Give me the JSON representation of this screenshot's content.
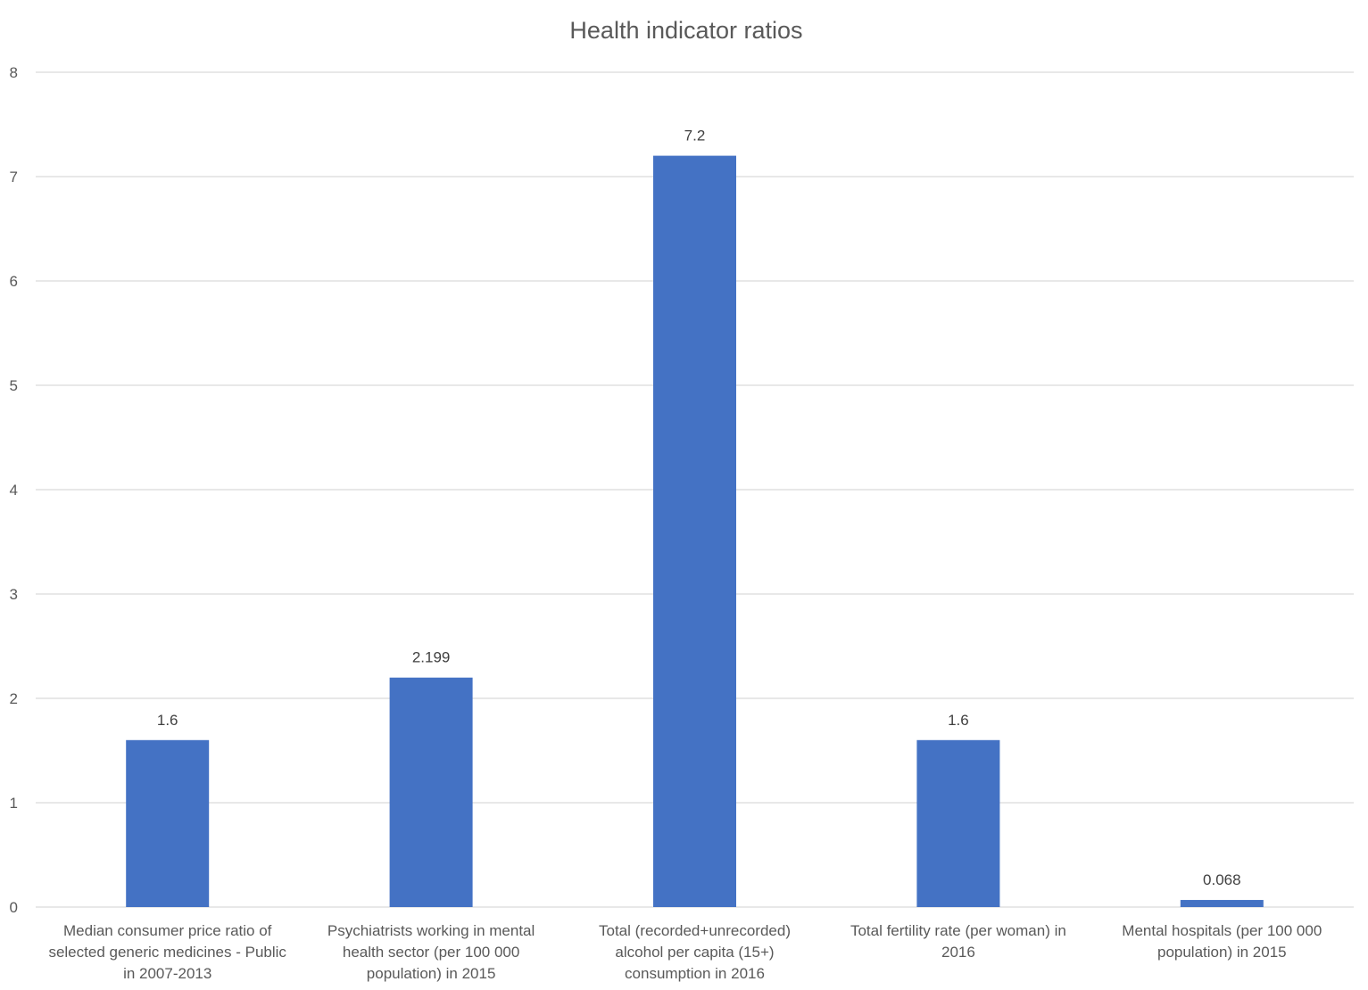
{
  "chart_data": {
    "type": "bar",
    "title": "Health indicator ratios",
    "xlabel": "",
    "ylabel": "",
    "ylim": [
      0,
      8
    ],
    "yticks": [
      0,
      1,
      2,
      3,
      4,
      5,
      6,
      7,
      8
    ],
    "grid": true,
    "legend": "none",
    "colors": {
      "bar": "#4472C4"
    },
    "categories": [
      [
        "Median consumer price ratio of",
        "selected generic medicines - Public",
        "in 2007-2013"
      ],
      [
        "Psychiatrists working in mental",
        "health sector (per 100 000",
        "population) in 2015"
      ],
      [
        "Total (recorded+unrecorded)",
        "alcohol per capita (15+)",
        "consumption in 2016"
      ],
      [
        "Total fertility rate (per woman) in",
        "2016"
      ],
      [
        "Mental hospitals (per 100 000",
        "population) in 2015"
      ]
    ],
    "values": [
      1.6,
      2.199,
      7.2,
      1.6,
      0.068
    ],
    "data_labels": [
      "1.6",
      "2.199",
      "7.2",
      "1.6",
      "0.068"
    ]
  }
}
